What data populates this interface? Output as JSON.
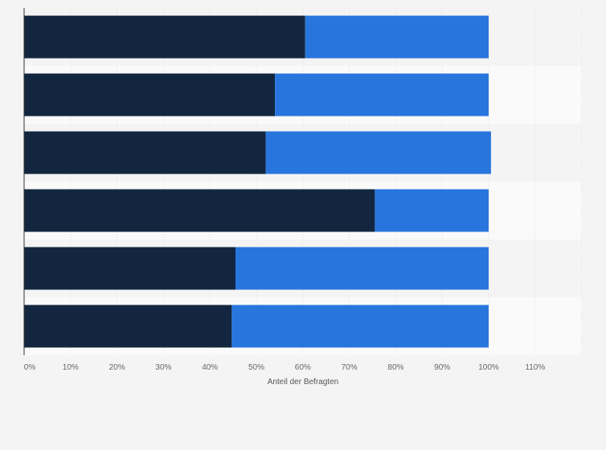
{
  "chart_data": {
    "type": "bar",
    "orientation": "horizontal",
    "stacked": true,
    "categories": [
      "",
      "",
      "",
      "",
      "",
      ""
    ],
    "series": [
      {
        "values": [
          60.5,
          54,
          52,
          75.5,
          45.5,
          44.7
        ]
      },
      {
        "values": [
          39.5,
          46,
          48.5,
          24.5,
          54.5,
          55.3
        ]
      }
    ],
    "xlim": [
      0,
      120
    ],
    "xticks": [
      "0%",
      "10%",
      "20%",
      "30%",
      "40%",
      "50%",
      "60%",
      "70%",
      "80%",
      "90%",
      "100%",
      "110%"
    ],
    "xlabel": "Anteil der Befragten",
    "grid": true,
    "colors": {
      "series_0": "#12263f",
      "series_1": "#2876dd",
      "band_light": "#f4f4f4",
      "band_dark": "#fafafa"
    }
  }
}
